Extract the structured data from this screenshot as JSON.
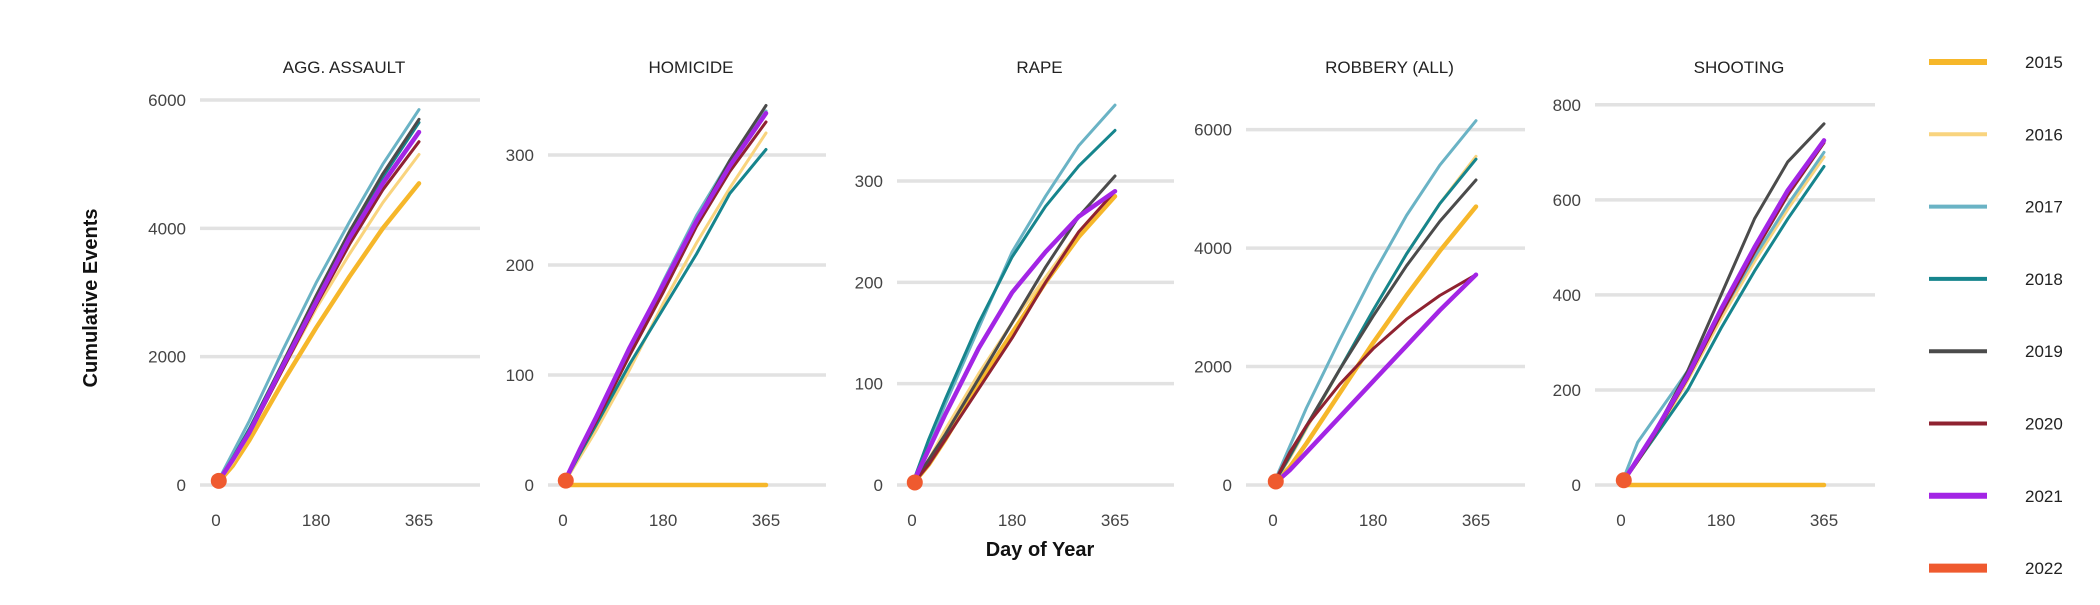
{
  "chart_data": {
    "type": "line",
    "ylabel": "Cumulative Events",
    "xlabel": "Day of Year",
    "xlim": [
      0,
      365
    ],
    "xticks": [
      0,
      180,
      365
    ],
    "grid": true,
    "legend_position": "right",
    "legend": [
      {
        "name": "2015",
        "color": "#f6b72a"
      },
      {
        "name": "2016",
        "color": "#f9d47e"
      },
      {
        "name": "2017",
        "color": "#6ab3c5"
      },
      {
        "name": "2018",
        "color": "#16858d"
      },
      {
        "name": "2019",
        "color": "#4b4b4b"
      },
      {
        "name": "2020",
        "color": "#8f2230"
      },
      {
        "name": "2021",
        "color": "#a325e5"
      },
      {
        "name": "2022",
        "color": "#ef5a2f"
      }
    ],
    "panels": [
      {
        "title": "AGG. ASSAULT",
        "ylim": [
          0,
          6000
        ],
        "yticks": [
          0,
          2000,
          4000,
          6000
        ],
        "series": [
          {
            "name": "2015",
            "x": [
              0,
              30,
              60,
              120,
              180,
              240,
              300,
              365
            ],
            "y": [
              0,
              300,
              700,
              1600,
              2450,
              3250,
              4000,
              4700
            ]
          },
          {
            "name": "2016",
            "x": [
              0,
              30,
              60,
              120,
              180,
              240,
              300,
              365
            ],
            "y": [
              0,
              350,
              800,
              1800,
              2750,
              3600,
              4400,
              5150
            ]
          },
          {
            "name": "2017",
            "x": [
              0,
              30,
              60,
              120,
              180,
              240,
              300,
              365
            ],
            "y": [
              0,
              500,
              1000,
              2100,
              3150,
              4100,
              5000,
              5850
            ]
          },
          {
            "name": "2018",
            "x": [
              0,
              30,
              60,
              120,
              180,
              240,
              300,
              365
            ],
            "y": [
              0,
              420,
              880,
              1900,
              2900,
              3900,
              4800,
              5650
            ]
          },
          {
            "name": "2019",
            "x": [
              0,
              30,
              60,
              120,
              180,
              240,
              300,
              365
            ],
            "y": [
              0,
              400,
              850,
              1900,
              2950,
              3950,
              4850,
              5700
            ]
          },
          {
            "name": "2020",
            "x": [
              0,
              30,
              60,
              120,
              180,
              240,
              300,
              365
            ],
            "y": [
              0,
              380,
              800,
              1800,
              2800,
              3750,
              4600,
              5350
            ]
          },
          {
            "name": "2021",
            "x": [
              0,
              30,
              60,
              120,
              180,
              240,
              300,
              365
            ],
            "y": [
              0,
              390,
              820,
              1850,
              2850,
              3850,
              4700,
              5500
            ]
          },
          {
            "name": "2022",
            "x": [
              0,
              3,
              6,
              10
            ],
            "y": [
              0,
              40,
              80,
              130
            ]
          }
        ]
      },
      {
        "title": "HOMICIDE",
        "ylim": [
          0,
          350
        ],
        "yticks": [
          0,
          100,
          200,
          300
        ],
        "series": [
          {
            "name": "2015",
            "x": [
              0,
              365
            ],
            "y": [
              0,
              0
            ]
          },
          {
            "name": "2016",
            "x": [
              0,
              30,
              60,
              120,
              180,
              240,
              300,
              365
            ],
            "y": [
              0,
              25,
              50,
              105,
              165,
              220,
              270,
              320
            ]
          },
          {
            "name": "2017",
            "x": [
              0,
              30,
              60,
              120,
              180,
              240,
              300,
              365
            ],
            "y": [
              0,
              30,
              60,
              120,
              185,
              245,
              295,
              340
            ]
          },
          {
            "name": "2018",
            "x": [
              0,
              30,
              60,
              120,
              180,
              240,
              300,
              365
            ],
            "y": [
              0,
              28,
              55,
              110,
              160,
              210,
              265,
              305
            ]
          },
          {
            "name": "2019",
            "x": [
              0,
              30,
              60,
              120,
              180,
              240,
              300,
              365
            ],
            "y": [
              0,
              30,
              60,
              120,
              180,
              240,
              295,
              345
            ]
          },
          {
            "name": "2020",
            "x": [
              0,
              30,
              60,
              120,
              180,
              240,
              300,
              365
            ],
            "y": [
              0,
              30,
              58,
              118,
              175,
              235,
              285,
              330
            ]
          },
          {
            "name": "2021",
            "x": [
              0,
              30,
              60,
              120,
              180,
              240,
              300,
              365
            ],
            "y": [
              0,
              32,
              62,
              125,
              182,
              240,
              290,
              338
            ]
          },
          {
            "name": "2022",
            "x": [
              0,
              3,
              6,
              10
            ],
            "y": [
              0,
              3,
              6,
              8
            ]
          }
        ]
      },
      {
        "title": "RAPE",
        "ylim": [
          0,
          380
        ],
        "yticks": [
          0,
          100,
          200,
          300
        ],
        "series": [
          {
            "name": "2015",
            "x": [
              0,
              30,
              60,
              120,
              180,
              240,
              300,
              365
            ],
            "y": [
              0,
              20,
              45,
              100,
              150,
              200,
              245,
              285
            ]
          },
          {
            "name": "2016",
            "x": [
              0,
              30,
              60,
              120,
              180,
              240,
              300,
              365
            ],
            "y": [
              0,
              25,
              55,
              110,
              160,
              205,
              250,
              290
            ]
          },
          {
            "name": "2017",
            "x": [
              0,
              30,
              60,
              120,
              180,
              240,
              300,
              365
            ],
            "y": [
              0,
              40,
              80,
              155,
              230,
              285,
              335,
              375
            ]
          },
          {
            "name": "2018",
            "x": [
              0,
              30,
              60,
              120,
              180,
              240,
              300,
              365
            ],
            "y": [
              0,
              45,
              85,
              160,
              225,
              275,
              315,
              350
            ]
          },
          {
            "name": "2019",
            "x": [
              0,
              30,
              60,
              120,
              180,
              240,
              300,
              365
            ],
            "y": [
              0,
              25,
              50,
              105,
              160,
              215,
              265,
              305
            ]
          },
          {
            "name": "2020",
            "x": [
              0,
              30,
              60,
              120,
              180,
              240,
              300,
              365
            ],
            "y": [
              0,
              20,
              45,
              95,
              145,
              200,
              250,
              290
            ]
          },
          {
            "name": "2021",
            "x": [
              0,
              30,
              60,
              120,
              180,
              240,
              300,
              365
            ],
            "y": [
              0,
              35,
              70,
              135,
              190,
              230,
              265,
              290
            ]
          },
          {
            "name": "2022",
            "x": [
              0,
              3,
              6,
              10
            ],
            "y": [
              0,
              2,
              4,
              5
            ]
          }
        ]
      },
      {
        "title": "ROBBERY (ALL)",
        "ylim": [
          0,
          6500
        ],
        "yticks": [
          0,
          2000,
          4000,
          6000
        ],
        "series": [
          {
            "name": "2015",
            "x": [
              0,
              30,
              60,
              120,
              180,
              240,
              300,
              365
            ],
            "y": [
              0,
              300,
              700,
              1550,
              2400,
              3200,
              3950,
              4700
            ]
          },
          {
            "name": "2016",
            "x": [
              0,
              30,
              60,
              120,
              180,
              240,
              300,
              365
            ],
            "y": [
              0,
              450,
              950,
              1950,
              2950,
              3900,
              4750,
              5550
            ]
          },
          {
            "name": "2017",
            "x": [
              0,
              30,
              60,
              120,
              180,
              240,
              300,
              365
            ],
            "y": [
              0,
              650,
              1300,
              2450,
              3550,
              4550,
              5400,
              6150
            ]
          },
          {
            "name": "2018",
            "x": [
              0,
              30,
              60,
              120,
              180,
              240,
              300,
              365
            ],
            "y": [
              0,
              480,
              980,
              1950,
              2950,
              3900,
              4750,
              5500
            ]
          },
          {
            "name": "2019",
            "x": [
              0,
              30,
              60,
              120,
              180,
              240,
              300,
              365
            ],
            "y": [
              0,
              500,
              1000,
              1950,
              2850,
              3700,
              4450,
              5150
            ]
          },
          {
            "name": "2020",
            "x": [
              0,
              30,
              60,
              120,
              180,
              240,
              300,
              365
            ],
            "y": [
              0,
              550,
              1000,
              1700,
              2300,
              2800,
              3200,
              3550
            ]
          },
          {
            "name": "2021",
            "x": [
              0,
              30,
              60,
              120,
              180,
              240,
              300,
              365
            ],
            "y": [
              0,
              250,
              550,
              1150,
              1750,
              2350,
              2950,
              3550
            ]
          },
          {
            "name": "2022",
            "x": [
              0,
              3,
              6,
              10
            ],
            "y": [
              0,
              40,
              80,
              120
            ]
          }
        ]
      },
      {
        "title": "SHOOTING",
        "ylim": [
          0,
          810
        ],
        "yticks": [
          0,
          200,
          400,
          600,
          800
        ],
        "series": [
          {
            "name": "2015",
            "x": [
              0,
              365
            ],
            "y": [
              0,
              0
            ]
          },
          {
            "name": "2016",
            "x": [
              0,
              30,
              60,
              120,
              180,
              240,
              300,
              365
            ],
            "y": [
              0,
              50,
              100,
              220,
              350,
              470,
              580,
              690
            ]
          },
          {
            "name": "2017",
            "x": [
              0,
              30,
              60,
              120,
              180,
              240,
              300,
              365
            ],
            "y": [
              0,
              90,
              140,
              240,
              360,
              480,
              590,
              700
            ]
          },
          {
            "name": "2018",
            "x": [
              0,
              30,
              60,
              120,
              180,
              240,
              300,
              365
            ],
            "y": [
              0,
              50,
              100,
              200,
              330,
              450,
              560,
              670
            ]
          },
          {
            "name": "2019",
            "x": [
              0,
              30,
              60,
              120,
              180,
              240,
              300,
              365
            ],
            "y": [
              0,
              55,
              110,
              240,
              400,
              560,
              680,
              760
            ]
          },
          {
            "name": "2020",
            "x": [
              0,
              30,
              60,
              120,
              180,
              240,
              300,
              365
            ],
            "y": [
              0,
              50,
              105,
              225,
              360,
              490,
              610,
              720
            ]
          },
          {
            "name": "2021",
            "x": [
              0,
              30,
              60,
              120,
              180,
              240,
              300,
              365
            ],
            "y": [
              0,
              55,
              110,
              230,
              370,
              500,
              620,
              725
            ]
          },
          {
            "name": "2022",
            "x": [
              0,
              3,
              6,
              10
            ],
            "y": [
              0,
              8,
              14,
              20
            ]
          }
        ]
      }
    ]
  }
}
